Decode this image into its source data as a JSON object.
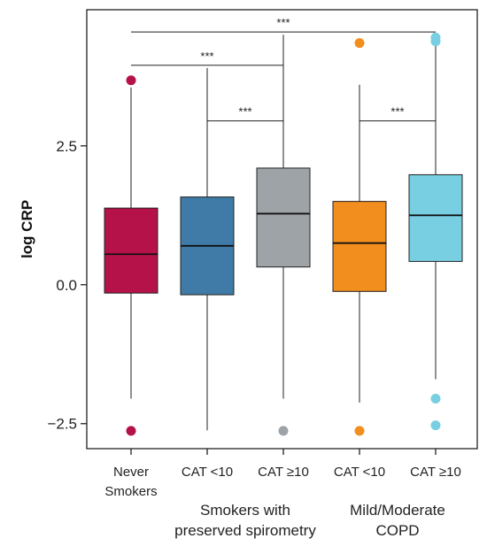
{
  "chart_data": {
    "type": "boxplot",
    "ylabel": "log CRP",
    "ylim": [
      -2.95,
      4.95
    ],
    "yticks": [
      {
        "value": -2.5,
        "label": "−2.5"
      },
      {
        "value": 0.0,
        "label": "0.0"
      },
      {
        "value": 2.5,
        "label": "2.5"
      }
    ],
    "categories": [
      {
        "label_lines": [
          "Never",
          "Smokers"
        ],
        "color": "#B5124A",
        "whisker_low": -2.05,
        "q1": -0.15,
        "median": 0.55,
        "q3": 1.38,
        "whisker_high": 3.55,
        "outliers": [
          3.68,
          -2.63
        ],
        "outlier_color": "#B5124A"
      },
      {
        "label_lines": [
          "CAT <10"
        ],
        "color": "#3F7BA6",
        "whisker_low": -2.62,
        "q1": -0.18,
        "median": 0.7,
        "q3": 1.58,
        "whisker_high": 3.9,
        "outliers": [],
        "outlier_color": "#3F7BA6"
      },
      {
        "label_lines": [
          "CAT ≥10"
        ],
        "color": "#9EA3A8",
        "whisker_low": -2.05,
        "q1": 0.32,
        "median": 1.28,
        "q3": 2.1,
        "whisker_high": 4.5,
        "outliers": [
          -2.63
        ],
        "outlier_color": "#9EA3A8"
      },
      {
        "label_lines": [
          "CAT <10"
        ],
        "color": "#F28E1E",
        "whisker_low": -2.12,
        "q1": -0.12,
        "median": 0.75,
        "q3": 1.5,
        "whisker_high": 3.6,
        "outliers": [
          4.35,
          -2.63
        ],
        "outlier_color": "#F28E1E"
      },
      {
        "label_lines": [
          "CAT ≥10"
        ],
        "color": "#78CFE2",
        "whisker_low": -1.7,
        "q1": 0.42,
        "median": 1.25,
        "q3": 1.98,
        "whisker_high": 4.3,
        "outliers": [
          4.45,
          4.38,
          -2.05,
          -2.53
        ],
        "outlier_color": "#78CFE2"
      }
    ],
    "group_labels": [
      {
        "lines": [
          "Smokers with",
          "preserved spirometry"
        ],
        "span": [
          1,
          2
        ]
      },
      {
        "lines": [
          "Mild/Moderate",
          "COPD"
        ],
        "span": [
          3,
          4
        ]
      }
    ],
    "significance": [
      {
        "from": 0,
        "to": 4,
        "y": 4.55,
        "label": "***"
      },
      {
        "from": 0,
        "to": 2,
        "y": 3.95,
        "label": "***"
      },
      {
        "from": 1,
        "to": 2,
        "y": 2.95,
        "label": "***"
      },
      {
        "from": 3,
        "to": 4,
        "y": 2.95,
        "label": "***"
      }
    ]
  }
}
